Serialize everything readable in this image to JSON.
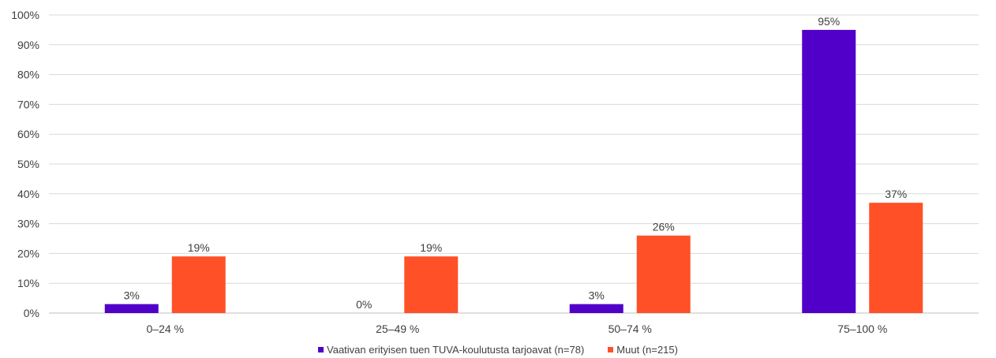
{
  "chart_data": {
    "type": "bar",
    "categories": [
      "0–24 %",
      "25–49 %",
      "50–74 %",
      "75–100 %"
    ],
    "series": [
      {
        "name": "Vaativan erityisen tuen TUVA-koulutusta tarjoavat (n=78)",
        "values": [
          3,
          0,
          3,
          95
        ],
        "labels": [
          "3%",
          "0%",
          "3%",
          "95%"
        ],
        "color": "#5000C8"
      },
      {
        "name": "Muut (n=215)",
        "values": [
          19,
          19,
          26,
          37
        ],
        "labels": [
          "19%",
          "19%",
          "26%",
          "37%"
        ],
        "color": "#FF5028"
      }
    ],
    "ylim": [
      0,
      100
    ],
    "yticks": [
      "0%",
      "10%",
      "20%",
      "30%",
      "40%",
      "50%",
      "60%",
      "70%",
      "80%",
      "90%",
      "100%"
    ],
    "grid": true,
    "legend_position": "bottom",
    "title": "",
    "xlabel": "",
    "ylabel": ""
  }
}
